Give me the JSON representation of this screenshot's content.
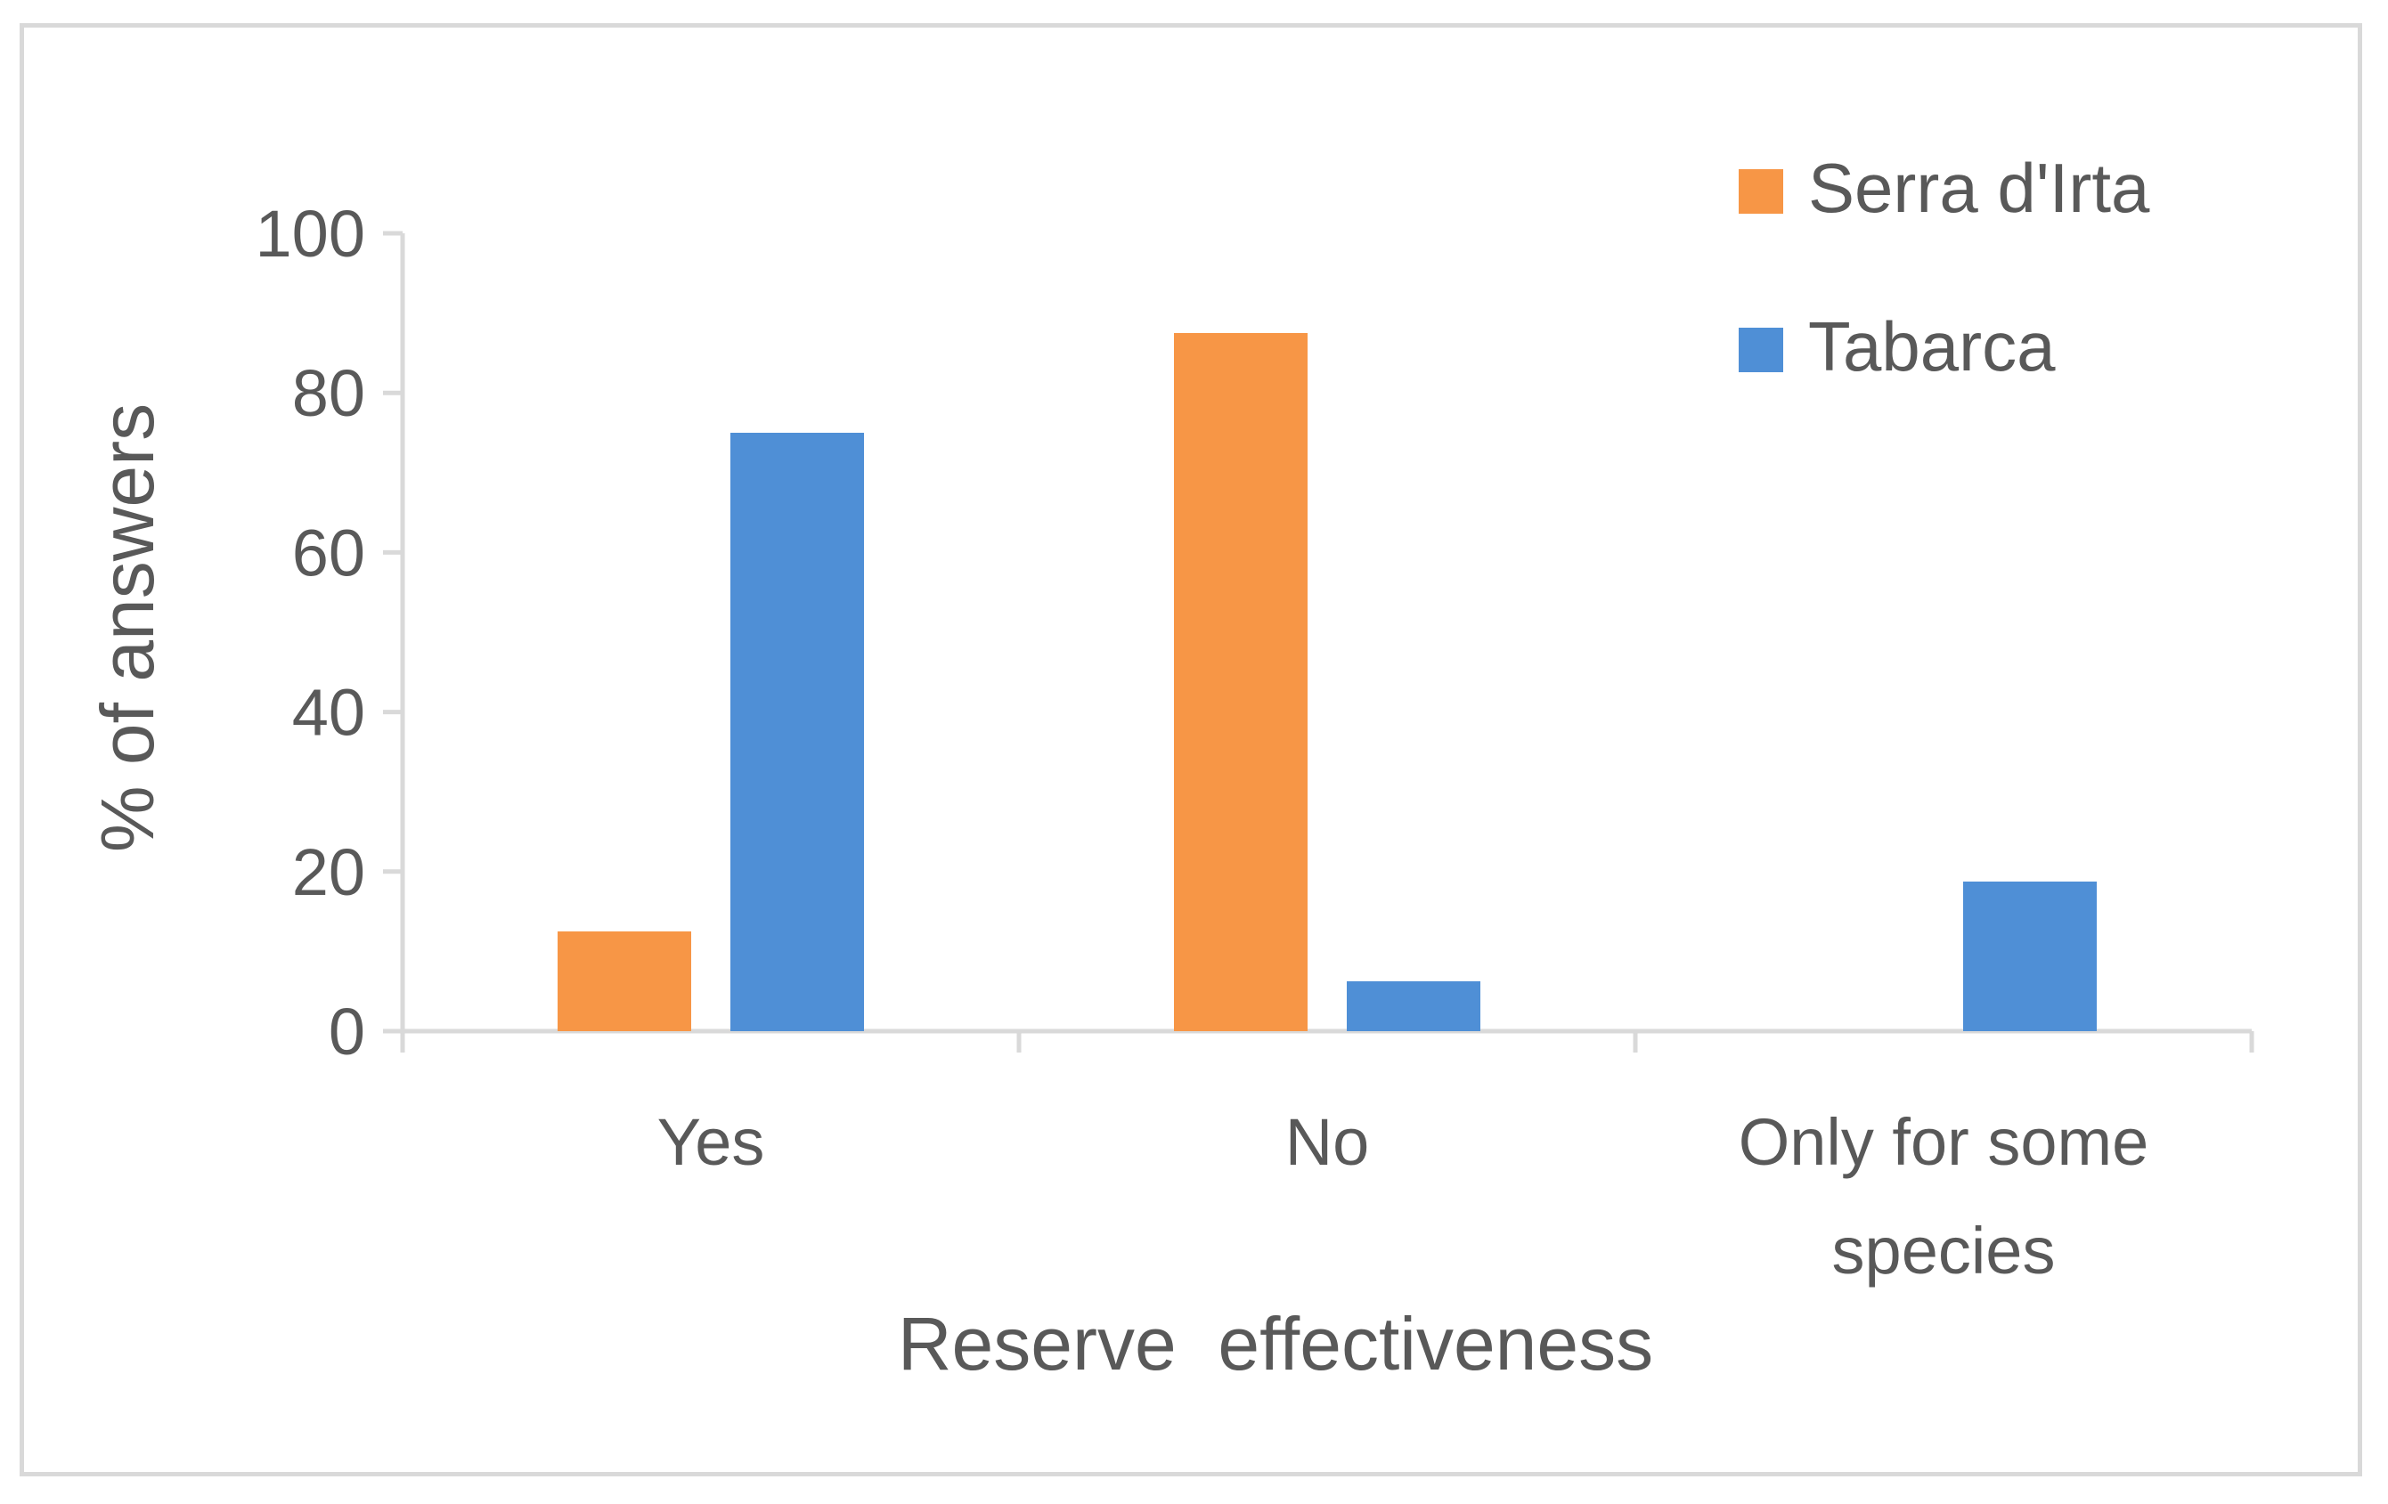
{
  "chart_data": {
    "type": "bar",
    "categories": [
      [
        "Yes"
      ],
      [
        "No"
      ],
      [
        "Only for some",
        "species"
      ]
    ],
    "series": [
      {
        "name": "Serra d'Irta",
        "color": "#F79646",
        "values": [
          12.5,
          87.5,
          0
        ]
      },
      {
        "name": "Tabarca",
        "color": "#4F8FD6",
        "values": [
          75,
          6.25,
          18.75
        ]
      }
    ],
    "xlabel": "Reserve  effectiveness",
    "ylabel": "% of answers",
    "ylim": [
      0,
      100
    ],
    "yticks": [
      0,
      20,
      40,
      60,
      80,
      100
    ],
    "grid": false,
    "legend_position": "top-right",
    "axis_color": "#d9d9d9",
    "text_color": "#595959"
  }
}
